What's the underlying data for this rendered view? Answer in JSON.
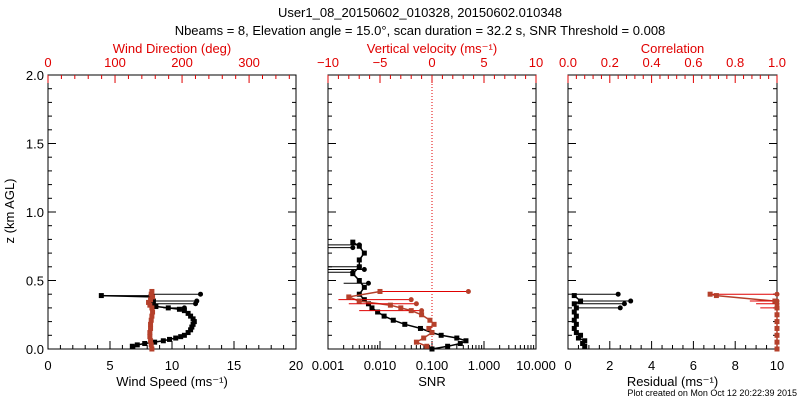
{
  "title_line1": "User1_08_20150602_010328, 20150602.010348",
  "title_line2": "Nbeams = 8, Elevation angle = 15.0°, scan duration = 32.2 s, SNR Threshold = 0.008",
  "footer": "Plot created on Mon Oct 12 20:22:39 2015",
  "colors": {
    "black_series": "#000000",
    "red_series": "#b5402b",
    "red_axis": "#e00000",
    "red_lines": "#e00000"
  },
  "chart_data": [
    {
      "type": "scatter",
      "ylabel": "z (km AGL)",
      "ylim": [
        0,
        2.0
      ],
      "yticks": [
        "0.0",
        "0.5",
        "1.0",
        "1.5",
        "2.0"
      ],
      "xlabel": "Wind Speed (ms⁻¹)",
      "xlim": [
        0,
        20
      ],
      "xticks": [
        "0",
        "5",
        "10",
        "15",
        "20"
      ],
      "top_xlabel": "Wind Direction (deg)",
      "top_xlim": [
        0,
        370
      ],
      "top_xticks": [
        "0",
        "100",
        "200",
        "300"
      ],
      "series": [
        {
          "name": "Wind Speed",
          "axis": "bottom",
          "color": "black",
          "points": [
            [
              6.8,
              0.02
            ],
            [
              7.2,
              0.03
            ],
            [
              7.8,
              0.04
            ],
            [
              8.6,
              0.05
            ],
            [
              9.3,
              0.06
            ],
            [
              9.8,
              0.07
            ],
            [
              10.3,
              0.08
            ],
            [
              10.7,
              0.09
            ],
            [
              11.0,
              0.1
            ],
            [
              11.3,
              0.12
            ],
            [
              11.5,
              0.14
            ],
            [
              11.6,
              0.16
            ],
            [
              11.7,
              0.18
            ],
            [
              11.8,
              0.2
            ],
            [
              11.7,
              0.22
            ],
            [
              11.5,
              0.24
            ],
            [
              11.3,
              0.26
            ],
            [
              11.0,
              0.28
            ],
            [
              10.6,
              0.29
            ],
            [
              9.7,
              0.3
            ],
            [
              8.7,
              0.31
            ],
            [
              8.3,
              0.33
            ],
            [
              8.5,
              0.35
            ],
            [
              8.3,
              0.38
            ],
            [
              4.3,
              0.39
            ]
          ],
          "outlier_lines": [
            [
              0.4,
              8.3,
              12.3
            ],
            [
              0.35,
              8.3,
              12.0
            ],
            [
              0.33,
              8.5,
              11.9
            ],
            [
              0.3,
              9.3,
              11.0
            ],
            [
              0.39,
              4.3,
              8.3
            ]
          ]
        },
        {
          "name": "Wind Direction",
          "axis": "top",
          "color": "red",
          "points": [
            [
              155,
              0.0
            ],
            [
              154,
              0.03
            ],
            [
              153,
              0.06
            ],
            [
              152,
              0.09
            ],
            [
              152,
              0.12
            ],
            [
              153,
              0.15
            ],
            [
              153,
              0.18
            ],
            [
              154,
              0.21
            ],
            [
              155,
              0.24
            ],
            [
              156,
              0.27
            ],
            [
              155,
              0.3
            ],
            [
              152,
              0.32
            ],
            [
              150,
              0.34
            ],
            [
              153,
              0.36
            ],
            [
              156,
              0.38
            ],
            [
              154,
              0.4
            ],
            [
              155,
              0.42
            ]
          ],
          "outlier_lines": []
        }
      ]
    },
    {
      "type": "scatter",
      "ylim": [
        0,
        2.0
      ],
      "xlabel": "SNR",
      "xscale": "log",
      "xlim": [
        0.001,
        10
      ],
      "xticks": [
        "0.001",
        "0.010",
        "0.100",
        "1.000",
        "10.000"
      ],
      "top_xlabel": "Vertical velocity (ms⁻¹)",
      "top_xlim": [
        -10,
        10
      ],
      "top_xticks": [
        "−10",
        "−5",
        "0",
        "5",
        "10"
      ],
      "series": [
        {
          "name": "SNR",
          "axis": "bottom",
          "color": "black",
          "points": [
            [
              0.1,
              0.0
            ],
            [
              0.2,
              0.02
            ],
            [
              0.35,
              0.04
            ],
            [
              0.45,
              0.06
            ],
            [
              0.3,
              0.08
            ],
            [
              0.15,
              0.1
            ],
            [
              0.1,
              0.12
            ],
            [
              0.06,
              0.15
            ],
            [
              0.03,
              0.18
            ],
            [
              0.018,
              0.21
            ],
            [
              0.012,
              0.24
            ],
            [
              0.009,
              0.27
            ],
            [
              0.007,
              0.3
            ],
            [
              0.006,
              0.33
            ],
            [
              0.005,
              0.36
            ],
            [
              0.004,
              0.4
            ],
            [
              0.005,
              0.45
            ],
            [
              0.004,
              0.5
            ],
            [
              0.003,
              0.55
            ],
            [
              0.004,
              0.6
            ],
            [
              0.004,
              0.65
            ],
            [
              0.005,
              0.7
            ],
            [
              0.004,
              0.75
            ],
            [
              0.003,
              0.78
            ]
          ],
          "outlier_lines": [
            [
              0.76,
              0.001,
              0.004
            ],
            [
              0.74,
              0.001,
              0.003
            ],
            [
              0.6,
              0.001,
              0.004
            ],
            [
              0.58,
              0.001,
              0.005
            ],
            [
              0.56,
              0.001,
              0.003
            ],
            [
              0.48,
              0.002,
              0.006
            ]
          ]
        },
        {
          "name": "Vertical velocity",
          "axis": "top",
          "color": "red",
          "points": [
            [
              -0.5,
              0.02
            ],
            [
              -1.5,
              0.05
            ],
            [
              -0.8,
              0.08
            ],
            [
              0.0,
              0.12
            ],
            [
              -0.3,
              0.15
            ],
            [
              0.2,
              0.18
            ],
            [
              -0.2,
              0.21
            ],
            [
              -1.0,
              0.25
            ],
            [
              -2.0,
              0.28
            ],
            [
              -3.0,
              0.3
            ],
            [
              -4.0,
              0.32
            ],
            [
              -7.0,
              0.35
            ],
            [
              -8.0,
              0.38
            ],
            [
              -5.0,
              0.42
            ]
          ],
          "outlier_lines": [
            [
              0.42,
              -5.0,
              3.5
            ],
            [
              0.36,
              -9.0,
              -2.0
            ],
            [
              0.33,
              -8.0,
              -1.5
            ],
            [
              0.28,
              -7.0,
              -1.0
            ]
          ]
        }
      ]
    },
    {
      "type": "scatter",
      "ylim": [
        0,
        2.0
      ],
      "xlabel": "Residual (ms⁻¹)",
      "xlim": [
        0,
        10
      ],
      "xticks": [
        "0",
        "2",
        "4",
        "6",
        "8",
        "10"
      ],
      "top_xlabel": "Correlation",
      "top_xlim": [
        0,
        1.0
      ],
      "top_xticks": [
        "0.0",
        "0.2",
        "0.4",
        "0.6",
        "0.8",
        "1.0"
      ],
      "series": [
        {
          "name": "Residual",
          "axis": "bottom",
          "color": "black",
          "points": [
            [
              0.8,
              0.02
            ],
            [
              0.7,
              0.04
            ],
            [
              0.8,
              0.06
            ],
            [
              0.5,
              0.08
            ],
            [
              0.6,
              0.1
            ],
            [
              0.4,
              0.12
            ],
            [
              0.3,
              0.15
            ],
            [
              0.4,
              0.18
            ],
            [
              0.3,
              0.21
            ],
            [
              0.4,
              0.24
            ],
            [
              0.3,
              0.27
            ],
            [
              0.4,
              0.3
            ],
            [
              0.3,
              0.33
            ],
            [
              0.6,
              0.35
            ],
            [
              0.3,
              0.39
            ]
          ],
          "outlier_lines": [
            [
              0.4,
              0.3,
              2.4
            ],
            [
              0.35,
              0.6,
              3.0
            ],
            [
              0.33,
              0.4,
              2.7
            ],
            [
              0.3,
              0.4,
              2.5
            ]
          ]
        },
        {
          "name": "Correlation",
          "axis": "top",
          "color": "red",
          "points": [
            [
              1.0,
              0.0
            ],
            [
              1.0,
              0.05
            ],
            [
              1.0,
              0.1
            ],
            [
              1.0,
              0.15
            ],
            [
              1.0,
              0.2
            ],
            [
              1.0,
              0.25
            ],
            [
              1.0,
              0.3
            ],
            [
              0.99,
              0.35
            ],
            [
              0.68,
              0.4
            ],
            [
              0.71,
              0.39
            ]
          ],
          "outlier_lines": [
            [
              0.4,
              0.68,
              1.0
            ],
            [
              0.35,
              0.87,
              1.0
            ],
            [
              0.33,
              0.9,
              1.0
            ],
            [
              0.3,
              0.92,
              1.0
            ]
          ]
        }
      ]
    }
  ]
}
